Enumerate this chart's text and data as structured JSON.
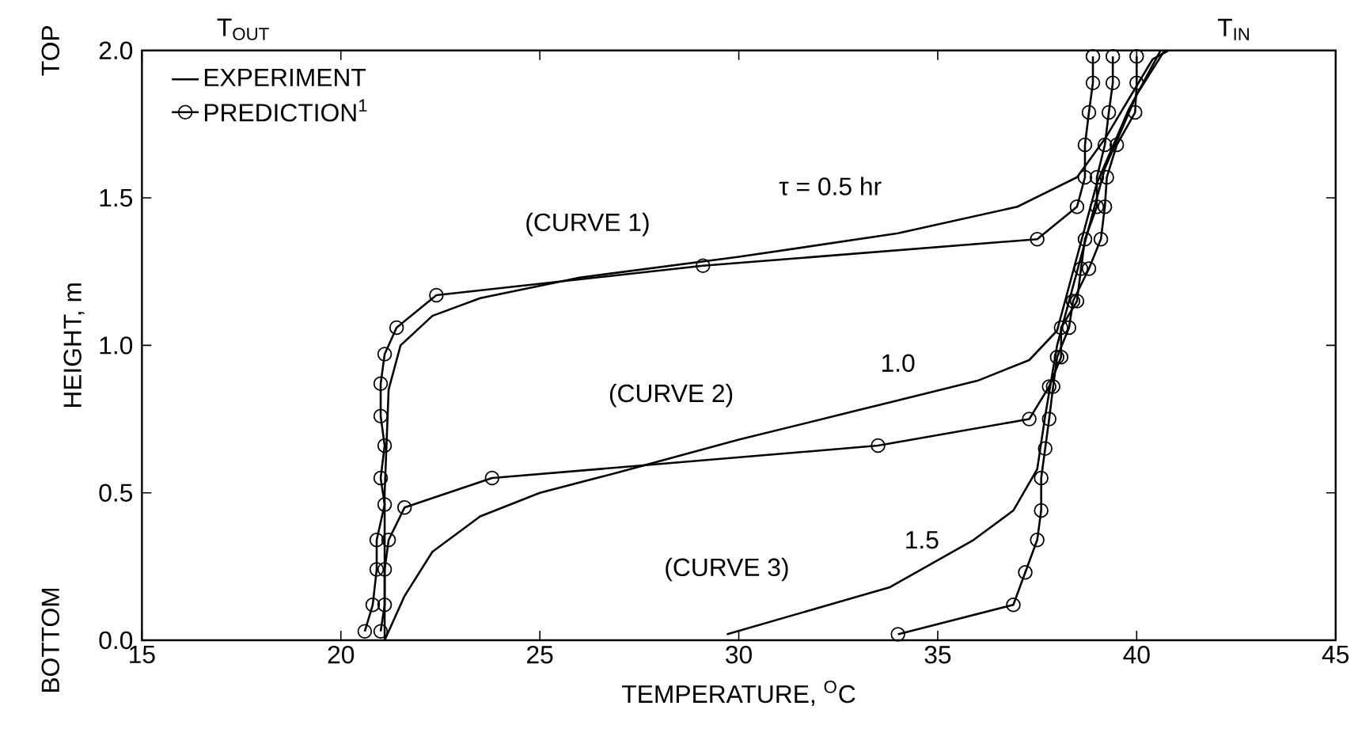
{
  "chart_data": {
    "type": "line",
    "xlabel": "TEMPERATURE, $^{O}$C",
    "ylabel": "HEIGHT, m",
    "xlim": [
      15,
      45
    ],
    "ylim": [
      0,
      2.0
    ],
    "xticks": [
      15,
      20,
      25,
      30,
      35,
      40,
      45
    ],
    "yticks": [
      {
        "value": 0,
        "label": "0.0"
      },
      {
        "value": 0.5,
        "label": "0.5"
      },
      {
        "value": 1.0,
        "label": "1.0"
      },
      {
        "value": 1.5,
        "label": "1.5"
      },
      {
        "value": 2.0,
        "label": "2.0"
      }
    ],
    "legend": "top left",
    "series": [
      {
        "name": "EXPERIMENT",
        "color": "#000000",
        "marker": "none",
        "x": [
          21.1,
          21.1,
          21.2,
          21.5,
          22.3,
          23.5,
          26,
          30,
          34,
          37,
          38.5,
          39.2,
          40.0,
          40.4,
          40.8
        ],
        "values": [
          0.0,
          0.5,
          0.85,
          1.0,
          1.1,
          1.16,
          1.23,
          1.3,
          1.38,
          1.47,
          1.57,
          1.7,
          1.88,
          1.97,
          2.0
        ]
      },
      {
        "name": "PREDICTION$^{1}$",
        "color": "#000000",
        "marker": "circle",
        "x": [
          20.6,
          20.8,
          20.9,
          20.9,
          21.1,
          21.0,
          21.1,
          21.0,
          21.0,
          21.1,
          21.4,
          22.4,
          29.1,
          37.5,
          38.5,
          38.7,
          38.7,
          38.8,
          38.9,
          38.9
        ],
        "values": [
          0.03,
          0.12,
          0.24,
          0.34,
          0.46,
          0.55,
          0.66,
          0.76,
          0.87,
          0.97,
          1.06,
          1.17,
          1.27,
          1.36,
          1.47,
          1.57,
          1.68,
          1.79,
          1.89,
          1.98
        ]
      },
      {
        "color": "#000000",
        "marker": "none",
        "x": [
          21.1,
          21.6,
          22.3,
          23.5,
          25,
          27,
          30,
          33,
          36,
          37.3,
          38.0,
          38.5,
          39.0,
          39.8,
          40.6
        ],
        "values": [
          0.0,
          0.15,
          0.3,
          0.42,
          0.5,
          0.57,
          0.68,
          0.78,
          0.88,
          0.95,
          1.05,
          1.3,
          1.55,
          1.8,
          2.0
        ]
      },
      {
        "color": "#000000",
        "marker": "circle",
        "x": [
          21.0,
          21.1,
          21.1,
          21.2,
          21.6,
          23.8,
          33.5,
          37.3,
          37.8,
          38.1,
          38.1,
          38.5,
          38.6,
          38.7,
          39.0,
          39.0,
          39.2,
          39.3,
          39.4,
          39.4
        ],
        "values": [
          0.03,
          0.12,
          0.24,
          0.34,
          0.45,
          0.55,
          0.66,
          0.75,
          0.86,
          0.96,
          1.06,
          1.15,
          1.26,
          1.36,
          1.47,
          1.57,
          1.68,
          1.79,
          1.89,
          1.98
        ]
      },
      {
        "color": "#000000",
        "marker": "none",
        "x": [
          29.7,
          33.8,
          35.9,
          36.9,
          37.5,
          37.7,
          38.0,
          38.6,
          39.2,
          40.0,
          40.7
        ],
        "values": [
          0.02,
          0.18,
          0.34,
          0.44,
          0.58,
          0.76,
          1.0,
          1.3,
          1.6,
          1.85,
          2.0
        ]
      },
      {
        "color": "#000000",
        "marker": "circle",
        "x": [
          34.0,
          36.9,
          37.2,
          37.5,
          37.6,
          37.6,
          37.7,
          37.8,
          37.9,
          38.0,
          38.3,
          38.4,
          38.8,
          39.1,
          39.2,
          39.25,
          39.5,
          39.96,
          40.0,
          40.0
        ],
        "values": [
          0.02,
          0.12,
          0.23,
          0.34,
          0.44,
          0.55,
          0.65,
          0.75,
          0.86,
          0.96,
          1.06,
          1.15,
          1.26,
          1.36,
          1.47,
          1.57,
          1.68,
          1.79,
          1.89,
          1.98
        ]
      }
    ],
    "annotations": [
      "T$_{OUT}$",
      "T$_{IN}$",
      "TOP",
      "BOTTOM",
      "τ = 0.5 hr",
      "(CURVE 1)",
      "1.0",
      "(CURVE 2)",
      "1.5",
      "(CURVE 3)"
    ]
  }
}
